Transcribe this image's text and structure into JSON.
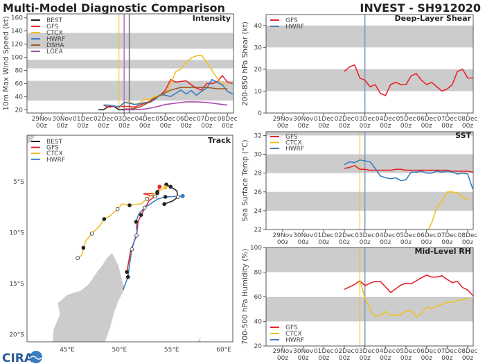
{
  "header": {
    "title": "Multi-Model Diagnostic Comparison",
    "storm": "INVEST - SH912020"
  },
  "colors": {
    "BEST": "#222222",
    "GFS": "#e8242a",
    "CTCX": "#f2c01e",
    "HWRF": "#3a7ebf",
    "DSHA": "#9a5a2a",
    "LGEA": "#a64db0",
    "band": "#cccccc"
  },
  "x_ticks": [
    {
      "t": "2020-11-29T00",
      "day": "29Nov",
      "hour": "00z"
    },
    {
      "t": "2020-11-30T00",
      "day": "30Nov",
      "hour": "00z"
    },
    {
      "t": "2020-12-01T00",
      "day": "01Dec",
      "hour": "00z"
    },
    {
      "t": "2020-12-02T00",
      "day": "02Dec",
      "hour": "00z"
    },
    {
      "t": "2020-12-03T00",
      "day": "03Dec",
      "hour": "00z"
    },
    {
      "t": "2020-12-04T00",
      "day": "04Dec",
      "hour": "00z"
    },
    {
      "t": "2020-12-05T00",
      "day": "05Dec",
      "hour": "00z"
    },
    {
      "t": "2020-12-06T00",
      "day": "06Dec",
      "hour": "00z"
    },
    {
      "t": "2020-12-07T00",
      "day": "07Dec",
      "hour": "00z"
    },
    {
      "t": "2020-12-08T00",
      "day": "08Dec",
      "hour": "00z"
    }
  ],
  "chart_data": [
    {
      "id": "intensity",
      "type": "line",
      "title": "Intensity",
      "ylabel": "10m Max Wind Speed (kt)",
      "ylim": [
        15,
        166
      ],
      "yticks": [
        20,
        40,
        60,
        80,
        100,
        120,
        140,
        160
      ],
      "bands": [
        [
          34,
          64
        ],
        [
          83,
          96
        ],
        [
          113,
          137
        ]
      ],
      "legend": "top-left",
      "vlines": [
        {
          "t": "2020-12-02T18",
          "model": "CTCX"
        },
        {
          "t": "2020-12-03T00",
          "model": "LGEA"
        },
        {
          "t": "2020-12-03T06",
          "model": "BEST"
        }
      ],
      "series": [
        {
          "name": "BEST",
          "start": "2020-12-01T18",
          "step_hours": 6,
          "values": [
            20,
            20,
            25,
            25,
            20,
            20
          ]
        },
        {
          "name": "GFS",
          "start": "2020-12-02T00",
          "step_hours": 6,
          "values": [
            27,
            24,
            25,
            25,
            25,
            25,
            24,
            27,
            30,
            33,
            40,
            42,
            50,
            66,
            62,
            63,
            64,
            58,
            53,
            50,
            60,
            60,
            62,
            72,
            62,
            60
          ]
        },
        {
          "name": "CTCX",
          "start": "2020-12-02T18",
          "step_hours": 6,
          "values": [
            22,
            31,
            32,
            28,
            30,
            36,
            36,
            40,
            42,
            45,
            60,
            78,
            82,
            92,
            99,
            102,
            103,
            92,
            80,
            68,
            60,
            57
          ]
        },
        {
          "name": "HWRF",
          "start": "2020-12-02T00",
          "step_hours": 6,
          "values": [
            27,
            27,
            26,
            24,
            31,
            30,
            28,
            29,
            31,
            31,
            36,
            43,
            42,
            40,
            45,
            50,
            44,
            49,
            42,
            48,
            53,
            66,
            62,
            58,
            48,
            44
          ]
        },
        {
          "name": "DSHA",
          "start": "2020-12-03T00",
          "step_hours": 6,
          "values": [
            21,
            21,
            22,
            24,
            28,
            32,
            38,
            42,
            46,
            50,
            52,
            54,
            54,
            54,
            54,
            54,
            54,
            53,
            52,
            52,
            52
          ]
        },
        {
          "name": "LGEA",
          "start": "2020-12-03T00",
          "step_hours": 12,
          "values": [
            20,
            20,
            21,
            24,
            28,
            30,
            32,
            32,
            31,
            29,
            27
          ]
        }
      ]
    },
    {
      "id": "shear",
      "type": "line",
      "title": "Deep-Layer Shear",
      "ylabel": "200-850 hPa Shear (kt)",
      "ylim": [
        0,
        45
      ],
      "yticks": [
        0,
        10,
        20,
        30,
        40
      ],
      "bands": [
        [
          10,
          20
        ],
        [
          30,
          40
        ]
      ],
      "legend": "top-left",
      "vlines": [
        {
          "t": "2020-12-03T00",
          "model": "HWRF"
        }
      ],
      "series": [
        {
          "name": "GFS",
          "start": "2020-12-02T00",
          "step_hours": 6,
          "values": [
            19,
            21,
            22,
            16,
            15,
            12,
            13,
            9,
            8,
            13,
            14,
            13,
            13,
            17,
            18,
            15,
            13,
            14,
            12,
            10,
            11,
            13,
            19,
            20,
            16,
            16
          ]
        },
        {
          "name": "HWRF",
          "start": "2020-12-02T00",
          "step_hours": 6,
          "values": []
        }
      ]
    },
    {
      "id": "sst",
      "type": "line",
      "title": "SST",
      "ylabel": "Sea Surface Temp (°C)",
      "ylim": [
        22,
        32.4
      ],
      "yticks": [
        22,
        24,
        26,
        28,
        30,
        32
      ],
      "bands": [
        [
          24,
          26
        ],
        [
          28,
          30
        ],
        [
          32,
          32.4
        ]
      ],
      "legend": "top-left",
      "vlines": [
        {
          "t": "2020-12-02T18",
          "model": "CTCX"
        },
        {
          "t": "2020-12-03T00",
          "model": "HWRF"
        }
      ],
      "series": [
        {
          "name": "GFS",
          "start": "2020-12-02T00",
          "step_hours": 6,
          "values": [
            28.5,
            28.6,
            28.8,
            28.4,
            28.4,
            28.3,
            28.3,
            28.3,
            28.3,
            28.3,
            28.4,
            28.4,
            28.3,
            28.3,
            28.3,
            28.3,
            28.3,
            28.3,
            28.3,
            28.3,
            28.3,
            28.2,
            28.2,
            28.2,
            28.2,
            28.1
          ]
        },
        {
          "name": "CTCX",
          "start": "2020-12-06T00",
          "step_hours": 6,
          "values": [
            21.6,
            22.7,
            24.4,
            25.0,
            26.0,
            26.0,
            25.9,
            25.4,
            25.2
          ]
        },
        {
          "name": "HWRF",
          "start": "2020-12-02T00",
          "step_hours": 6,
          "values": [
            28.9,
            29.2,
            29.1,
            29.4,
            29.3,
            29.2,
            28.5,
            27.7,
            27.5,
            27.4,
            27.5,
            27.2,
            27.3,
            28.1,
            28.1,
            28.2,
            28.0,
            28.0,
            28.2,
            28.1,
            28.2,
            28.1,
            27.9,
            28.0,
            27.9,
            26.3
          ]
        }
      ]
    },
    {
      "id": "rh",
      "type": "line",
      "title": "Mid-Level RH",
      "ylabel": "700-500 hPa Humidity (%)",
      "ylim": [
        20,
        100
      ],
      "yticks": [
        20,
        40,
        60,
        80,
        100
      ],
      "bands": [
        [
          40,
          60
        ],
        [
          80,
          100
        ]
      ],
      "legend": "bottom-left",
      "vlines": [
        {
          "t": "2020-12-02T18",
          "model": "CTCX"
        },
        {
          "t": "2020-12-03T00",
          "model": "HWRF"
        }
      ],
      "series": [
        {
          "name": "GFS",
          "start": "2020-12-02T00",
          "step_hours": 6,
          "values": [
            66,
            68,
            70,
            73,
            69,
            71,
            72.5,
            72.5,
            68,
            63.5,
            66.5,
            69.5,
            71,
            70.5,
            73,
            75.5,
            77.5,
            76,
            76,
            77,
            74,
            71.5,
            72.5,
            67.5,
            65.5,
            61
          ]
        },
        {
          "name": "CTCX",
          "start": "2020-12-02T18",
          "step_hours": 6,
          "values": [
            73.5,
            59,
            50,
            44,
            45,
            48,
            45,
            45,
            45.5,
            48,
            49,
            43.5,
            46.5,
            51.5,
            50.5,
            52.5,
            54,
            55.5,
            55.5,
            57,
            57.5,
            59
          ]
        },
        {
          "name": "HWRF",
          "start": "2020-12-02T00",
          "step_hours": 6,
          "values": []
        }
      ]
    },
    {
      "id": "track",
      "type": "line",
      "title": "Track",
      "xlim": [
        41.15,
        60.86
      ],
      "ylim": [
        -20.7,
        -0.45
      ],
      "x_ticks": [
        {
          "v": 45,
          "label": "45°E"
        },
        {
          "v": 50,
          "label": "50°E"
        },
        {
          "v": 55,
          "label": "55°E"
        },
        {
          "v": 60,
          "label": "60°E"
        }
      ],
      "y_ticks": [
        {
          "v": -5,
          "label": "5°S"
        },
        {
          "v": -10,
          "label": "10°S"
        },
        {
          "v": -15,
          "label": "15°S"
        },
        {
          "v": -20,
          "label": "20°S"
        }
      ],
      "legend": "top-left",
      "series": [
        {
          "name": "BEST",
          "lon": [
            54.5,
            54.9,
            55.5,
            55.6,
            55.1,
            54.3
          ],
          "lat": [
            -5.3,
            -5.5,
            -5.9,
            -6.5,
            -6.9,
            -7.2
          ]
        },
        {
          "name": "GFS",
          "lon": [
            53.85,
            53.63,
            52.3,
            53.4,
            52.85,
            52.08,
            51.79,
            51.64,
            51.08,
            50.71
          ],
          "lat": [
            -5.5,
            -6.13,
            -6.19,
            -6.46,
            -6.85,
            -8.27,
            -8.94,
            -10.29,
            -11.76,
            -13.85
          ]
        },
        {
          "name": "CTCX",
          "lon": [
            54.4,
            53.63,
            53.19,
            52.63,
            52.08,
            50.97,
            50.27,
            49.82,
            49.05,
            48.54,
            48.14,
            47.37,
            46.81,
            46.55,
            46.39,
            46.0
          ],
          "lat": [
            -5.56,
            -6.01,
            -6.24,
            -6.69,
            -7.18,
            -7.32,
            -7.18,
            -7.7,
            -8.4,
            -8.67,
            -9.3,
            -10.09,
            -10.74,
            -11.49,
            -12.21,
            -12.5
          ]
        },
        {
          "name": "HWRF",
          "lon": [
            56.06,
            54.4,
            53.63,
            52.41,
            51.86,
            51.59,
            51.68,
            51.19,
            50.97,
            50.82,
            50.35
          ],
          "lat": [
            -6.42,
            -6.49,
            -6.73,
            -7.55,
            -8.15,
            -8.94,
            -9.95,
            -11.64,
            -13.1,
            -14.35,
            -15.59
          ]
        }
      ]
    }
  ],
  "logo": {
    "text": "CIRA"
  }
}
